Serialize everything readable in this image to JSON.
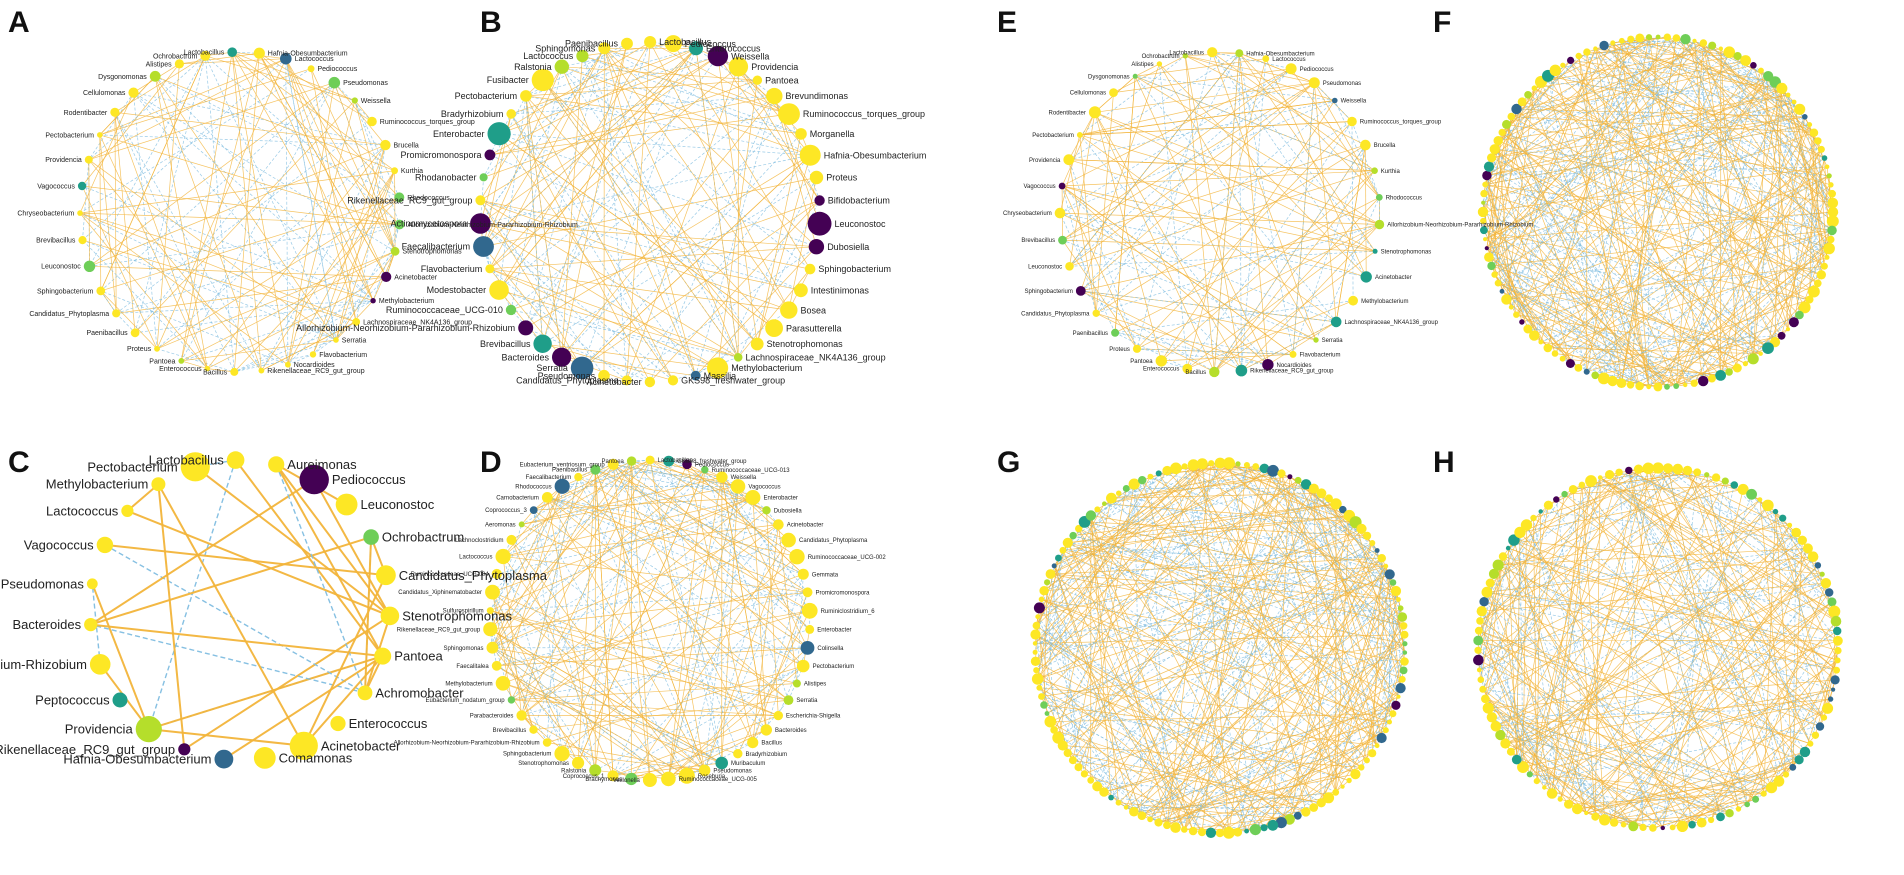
{
  "colors": {
    "positive_edge": "#f2b43a",
    "negative_edge": "#7fbde0",
    "node_palette": [
      "#fde725",
      "#b5de2b",
      "#6ece58",
      "#35b779",
      "#1f9e89",
      "#26828e",
      "#31688e",
      "#3e4989",
      "#482878",
      "#440154"
    ]
  },
  "panels": [
    {
      "letter": "A",
      "labels": [
        "Hafnia-Obesumbacterium",
        "Lactococcus",
        "Pediococcus",
        "Pseudomonas",
        "Weissella",
        "Ruminococcus_torques_group",
        "Brucella",
        "Kurthia",
        "Rhodococcus",
        "Allorhizobium-Neorhizobium-Pararhizobium-Rhizobium",
        "Stenotrophomonas",
        "Acinetobacter",
        "Methylobacterium",
        "Lachnospiraceae_NK4A136_group",
        "Serratia",
        "Flavobacterium",
        "Nocardioides",
        "Rikenellaceae_RC9_gut_group",
        "Bacillus",
        "Enterococcus",
        "Pantoea",
        "Proteus",
        "Paenibacillus",
        "Candidatus_Phytoplasma",
        "Sphingobacterium",
        "Leuconostoc",
        "Brevibacillus",
        "Chryseobacterium",
        "Vagococcus",
        "Providencia",
        "Pectobacterium",
        "Rodentibacter",
        "Cellulomonas",
        "Dysgonomonas",
        "Alistipes",
        "Ochrobactrum",
        "Lactobacillus"
      ]
    },
    {
      "letter": "B",
      "labels": [
        "Lactobacillus",
        "Pediococcus",
        "Enterococcus",
        "Weissella",
        "Providencia",
        "Pantoea",
        "Brevundimonas",
        "Ruminococcus_torques_group",
        "Morganella",
        "Hafnia-Obesumbacterium",
        "Proteus",
        "Bifidobacterium",
        "Leuconostoc",
        "Dubosiella",
        "Sphingobacterium",
        "Intestinimonas",
        "Bosea",
        "Parasutterella",
        "Stenotrophomonas",
        "Lachnospiraceae_NK4A136_group",
        "Methylobacterium",
        "Massilia",
        "GKS98_freshwater_group",
        "Acinetobacter",
        "Candidatus_Phytoplasma",
        "Pseudomonas",
        "Serratia",
        "Bacteroides",
        "Brevibacillus",
        "Allorhizobium-Neorhizobium-Pararhizobium-Rhizobium",
        "Ruminococcaceae_UCG-010",
        "Modestobacter",
        "Flavobacterium",
        "Faecalibacterium",
        "Actinomycetospora",
        "Rikenellaceae_RC9_gut_group",
        "Rhodanobacter",
        "Promicromonospora",
        "Enterobacter",
        "Bradyrhizobium",
        "Pectobacterium",
        "Fusibacter",
        "Ralstonia",
        "Lactococcus",
        "Sphingomonas",
        "Paenibacillus"
      ]
    },
    {
      "letter": "C",
      "labels": [
        "Lactobacillus",
        "Aureimonas",
        "Pediococcus",
        "Leuconostoc",
        "Ochrobactrum",
        "Candidatus_Phytoplasma",
        "Stenotrophomonas",
        "Pantoea",
        "Achromobacter",
        "Enterococcus",
        "Acinetobacter",
        "Comamonas",
        "Hafnia-Obesumbacterium",
        "Rikenellaceae_RC9_gut_group",
        "Providencia",
        "Peptococcus",
        "Allorhizobium-Neorhizobium-Pararhizobium-Rhizobium",
        "Bacteroides",
        "Pseudomonas",
        "Vagococcus",
        "Lactococcus",
        "Methylobacterium",
        "Pectobacterium"
      ]
    },
    {
      "letter": "D",
      "labels": [
        "Lactobacillus",
        "GKS98_freshwater_group",
        "Pediococcus",
        "Ruminococcaceae_UCG-013",
        "Weissella",
        "Vagococcus",
        "Enterobacter",
        "Dubosiella",
        "Acinetobacter",
        "Candidatus_Phytoplasma",
        "Ruminococcaceae_UCG-002",
        "Gemmata",
        "Promicromonospora",
        "Ruminiclostridium_6",
        "Enterobacter",
        "Colinsella",
        "Pectobacterium",
        "Alistipes",
        "Serratia",
        "Escherichia-Shigella",
        "Bacteroides",
        "Bacillus",
        "Bradyrhizobium",
        "Muribaculum",
        "Pseudomonas",
        "Roseburia",
        "Ruminococcaceae_UCG-005",
        "Veillonella",
        "Brachymonas",
        "Coprococcus_1",
        "Ralstonia",
        "Stenotrophomonas",
        "Sphingobacterium",
        "Allorhizobium-Neorhizobium-Pararhizobium-Rhizobium",
        "Brevibacillus",
        "Parabacteroides",
        "Eubacterium_nodatum_group",
        "Methylobacterium",
        "Faecalitalea",
        "Sphingomonas",
        "Rikenellaceae_RC9_gut_group",
        "Sulfurospirillum",
        "Candidatus_Xiphinematobacter",
        "Ruminococcaceae_UCG-004",
        "Lactococcus",
        "Lachnoclostridium",
        "Aeromonas",
        "Coprococcus_3",
        "Carnobacterium",
        "Rhodococcus",
        "Faecalibacterium",
        "Paenibacillus",
        "Eubacterium_ventriosum_group",
        "Pantoea"
      ]
    },
    {
      "letter": "E",
      "labels": [
        "Hafnia-Obesumbacterium",
        "Lactococcus",
        "Pediococcus",
        "Pseudomonas",
        "Weissella",
        "Ruminococcus_torques_group",
        "Brucella",
        "Kurthia",
        "Rhodococcus",
        "Allorhizobium-Neorhizobium-Pararhizobium-Rhizobium",
        "Stenotrophomonas",
        "Acinetobacter",
        "Methylobacterium",
        "Lachnospiraceae_NK4A136_group",
        "Serratia",
        "Flavobacterium",
        "Nocardioides",
        "Rikenellaceae_RC9_gut_group",
        "Bacillus",
        "Enterococcus",
        "Pantoea",
        "Proteus",
        "Paenibacillus",
        "Candidatus_Phytoplasma",
        "Sphingobacterium",
        "Leuconostoc",
        "Brevibacillus",
        "Chryseobacterium",
        "Vagococcus",
        "Providencia",
        "Pectobacterium",
        "Rodentibacter",
        "Cellulomonas",
        "Dysgonomonas",
        "Alistipes",
        "Ochrobactrum",
        "Lactobacillus"
      ]
    },
    {
      "letter": "F",
      "labels": []
    },
    {
      "letter": "G",
      "labels": []
    },
    {
      "letter": "H",
      "labels": []
    }
  ]
}
